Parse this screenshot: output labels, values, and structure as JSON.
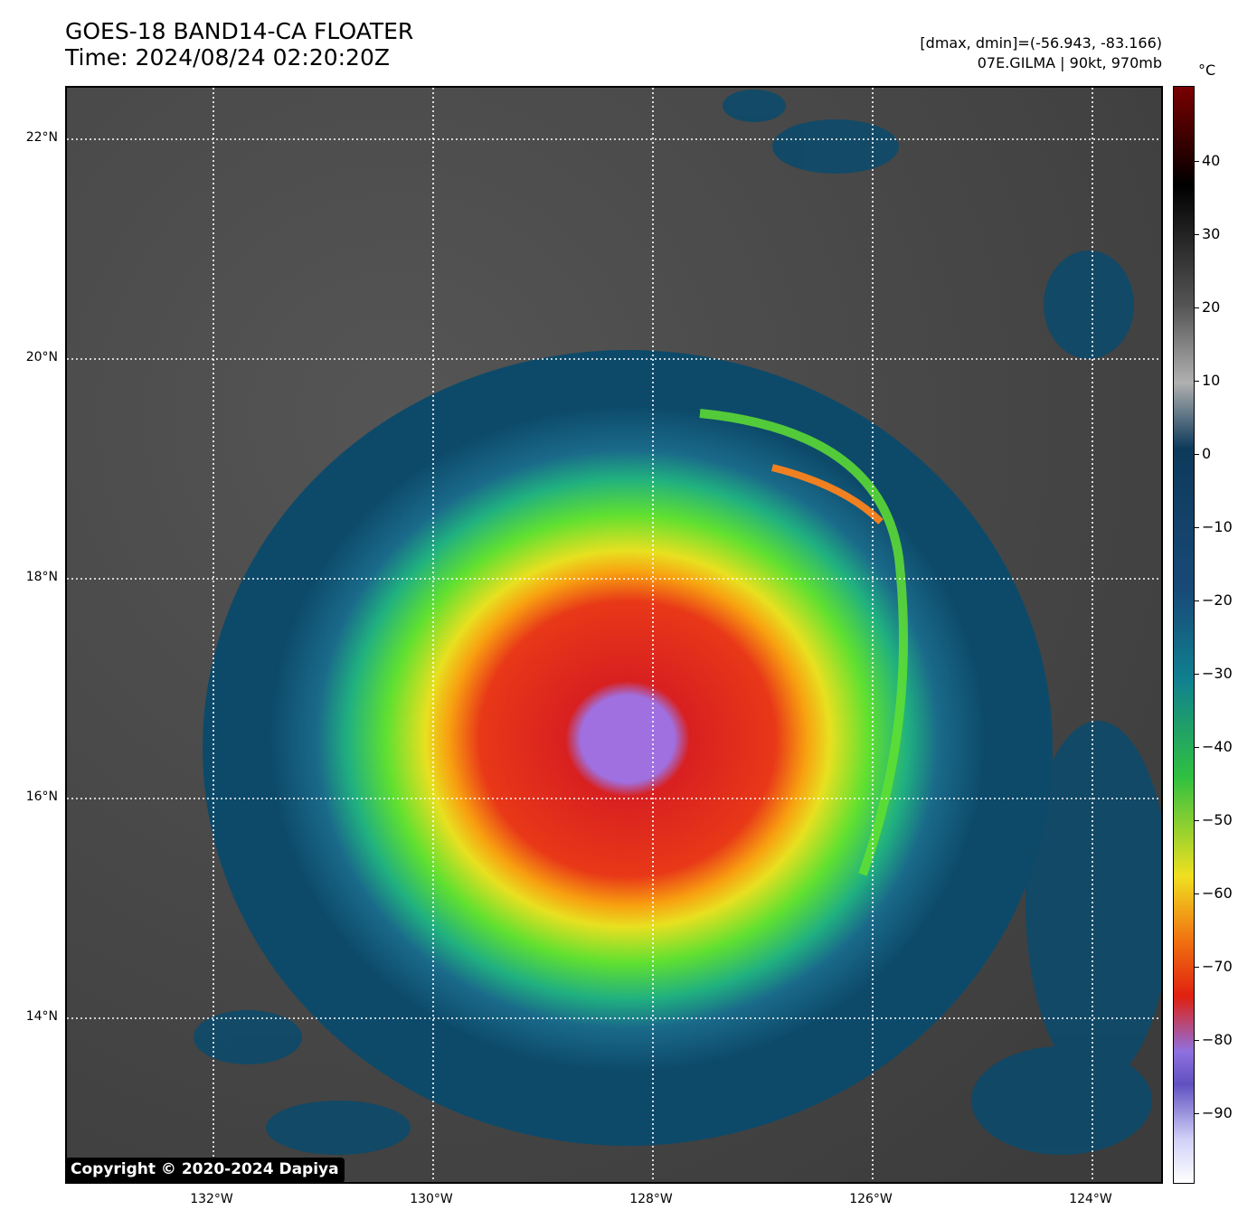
{
  "title": {
    "line1": "GOES-18 BAND14-CA FLOATER",
    "line2": "Time: 2024/08/24 02:20:20Z"
  },
  "meta": {
    "range": "[dmax, dmin]=(-56.943, -83.166)",
    "storm": "07E.GILMA | 90kt, 970mb"
  },
  "map": {
    "lat_labels": [
      "22°N",
      "20°N",
      "18°N",
      "16°N",
      "14°N"
    ],
    "lon_labels": [
      "132°W",
      "130°W",
      "128°W",
      "126°W",
      "124°W"
    ],
    "copyright": "Copyright © 2020-2024 Dapiya"
  },
  "colorbar": {
    "unit": "°C",
    "ticks": [
      "40",
      "30",
      "20",
      "10",
      "0",
      "−10",
      "−20",
      "−30",
      "−40",
      "−50",
      "−60",
      "−70",
      "−80",
      "−90"
    ]
  }
}
